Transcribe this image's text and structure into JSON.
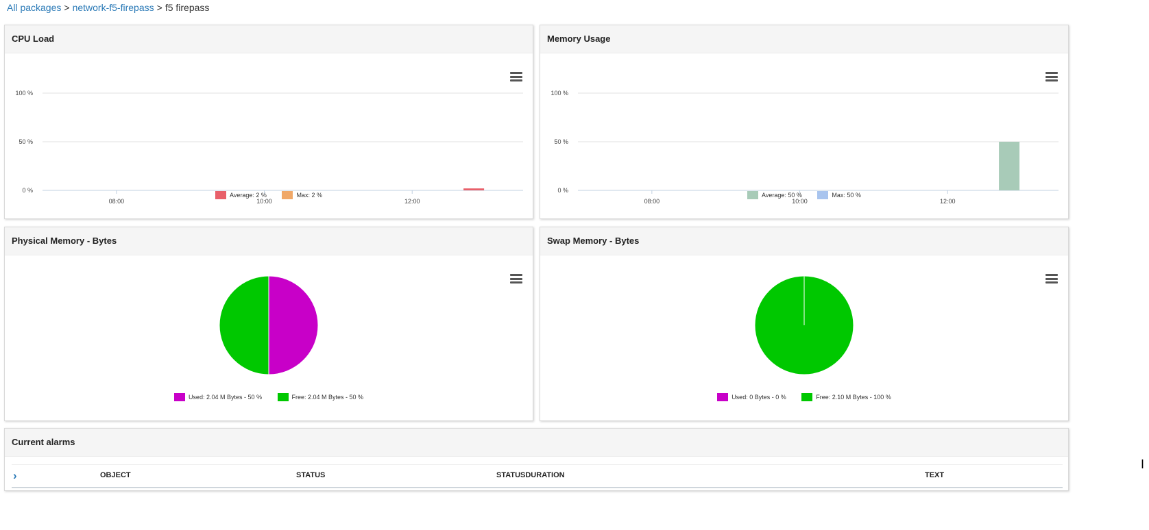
{
  "breadcrumb": {
    "all_packages": "All packages",
    "sep1": ">",
    "package": "network-f5-firepass",
    "sep2": ">",
    "current": "f5 firepass"
  },
  "panels": {
    "cpu_load": {
      "title": "CPU Load",
      "legend": [
        {
          "label": "Average: 2 %",
          "color": "#e8606a"
        },
        {
          "label": "Max: 2 %",
          "color": "#f0a868"
        }
      ]
    },
    "memory_usage": {
      "title": "Memory Usage",
      "legend": [
        {
          "label": "Average: 50 %",
          "color": "#a8cbb8"
        },
        {
          "label": "Max: 50 %",
          "color": "#a8c4ee"
        }
      ]
    },
    "physical_memory": {
      "title": "Physical Memory - Bytes",
      "legend": [
        {
          "label": "Used: 2.04 M Bytes - 50 %",
          "color": "#c800c8"
        },
        {
          "label": "Free: 2.04 M Bytes - 50 %",
          "color": "#00c800"
        }
      ]
    },
    "swap_memory": {
      "title": "Swap Memory - Bytes",
      "legend": [
        {
          "label": "Used: 0 Bytes - 0 %",
          "color": "#c800c8"
        },
        {
          "label": "Free: 2.10 M Bytes - 100 %",
          "color": "#00c800"
        }
      ]
    },
    "alarms": {
      "title": "Current alarms",
      "expand_icon": "chevron-right-icon",
      "columns": [
        "OBJECT",
        "STATUS",
        "STATUSDURATION",
        "TEXT"
      ],
      "rows": []
    }
  },
  "chart_data": [
    {
      "type": "bar",
      "x": [
        "12:50"
      ],
      "x_ticks": [
        "08:00",
        "10:00",
        "12:00"
      ],
      "xlim": [
        "07:00",
        "13:30"
      ],
      "y_ticks": [
        "0 %",
        "50 %",
        "100 %"
      ],
      "ylim": [
        0,
        100
      ],
      "series": [
        {
          "name": "Average",
          "values": [
            2
          ],
          "color": "#e8606a"
        },
        {
          "name": "Max",
          "values": [
            2
          ],
          "color": "#f0a868"
        }
      ],
      "grid": true,
      "legend": "bottom-center",
      "title": "CPU Load"
    },
    {
      "type": "bar",
      "x": [
        "12:50"
      ],
      "x_ticks": [
        "08:00",
        "10:00",
        "12:00"
      ],
      "xlim": [
        "07:00",
        "13:30"
      ],
      "y_ticks": [
        "0 %",
        "50 %",
        "100 %"
      ],
      "ylim": [
        0,
        100
      ],
      "series": [
        {
          "name": "Average",
          "values": [
            50
          ],
          "color": "#a8cbb8"
        },
        {
          "name": "Max",
          "values": [
            50
          ],
          "color": "#a8c4ee"
        }
      ],
      "grid": true,
      "legend": "bottom-center",
      "title": "Memory Usage"
    },
    {
      "type": "pie",
      "title": "Physical Memory - Bytes",
      "categories": [
        "Used",
        "Free"
      ],
      "values": [
        50,
        50
      ],
      "colors": [
        "#c800c8",
        "#00c800"
      ],
      "legend": "bottom-center"
    },
    {
      "type": "pie",
      "title": "Swap Memory - Bytes",
      "categories": [
        "Used",
        "Free"
      ],
      "values": [
        0,
        100
      ],
      "colors": [
        "#c800c8",
        "#00c800"
      ],
      "legend": "bottom-center"
    }
  ]
}
